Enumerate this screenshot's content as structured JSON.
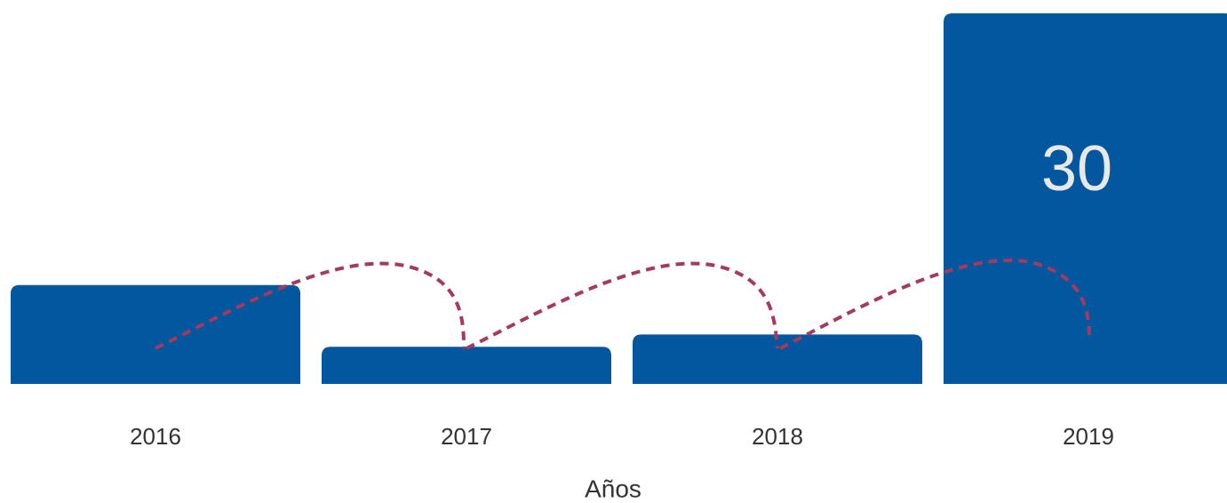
{
  "chart_data": {
    "type": "bar",
    "categories": [
      "2016",
      "2017",
      "2018",
      "2019"
    ],
    "values": [
      8,
      3,
      4,
      30
    ],
    "color": "#02579e",
    "xlabel": "Años"
  }
}
